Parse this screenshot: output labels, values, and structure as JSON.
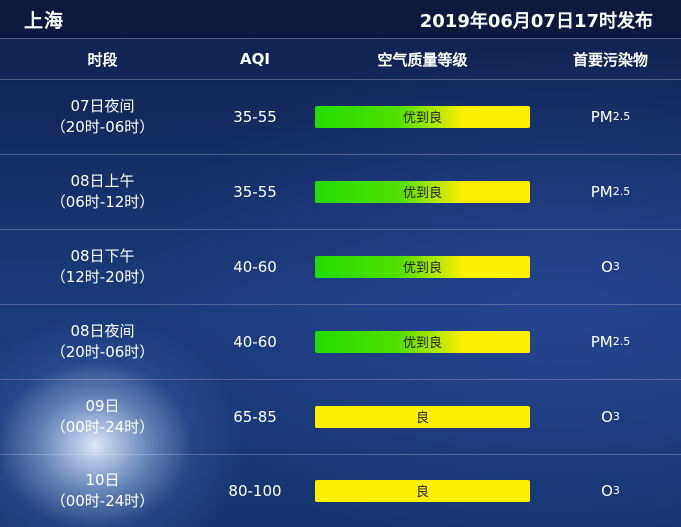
{
  "header": {
    "city": "上海",
    "release_time": "2019年06月07日17时发布"
  },
  "columns": {
    "period": "时段",
    "aqi": "AQI",
    "quality": "空气质量等级",
    "pollutant": "首要污染物"
  },
  "rows": [
    {
      "day": "07日夜间",
      "hours": "（20时-06时）",
      "aqi": "35-55",
      "quality": "优到良",
      "pollutant": "PM",
      "pollutant_sub": "2.5"
    },
    {
      "day": "08日上午",
      "hours": "（06时-12时）",
      "aqi": "35-55",
      "quality": "优到良",
      "pollutant": "PM",
      "pollutant_sub": "2.5"
    },
    {
      "day": "08日下午",
      "hours": "（12时-20时）",
      "aqi": "40-60",
      "quality": "优到良",
      "pollutant": "O",
      "pollutant_sub": "3"
    },
    {
      "day": "08日夜间",
      "hours": "（20时-06时）",
      "aqi": "40-60",
      "quality": "优到良",
      "pollutant": "PM",
      "pollutant_sub": "2.5"
    },
    {
      "day": "09日",
      "hours": "（00时-24时）",
      "aqi": "65-85",
      "quality": "良",
      "pollutant": "O",
      "pollutant_sub": "3"
    },
    {
      "day": "10日",
      "hours": "（00时-24时）",
      "aqi": "80-100",
      "quality": "良",
      "pollutant": "O",
      "pollutant_sub": "3"
    }
  ],
  "colors": {
    "good_to_moderate": "green-to-yellow gradient",
    "moderate": "#ffee00",
    "header_bg": "#0d1a3e"
  }
}
